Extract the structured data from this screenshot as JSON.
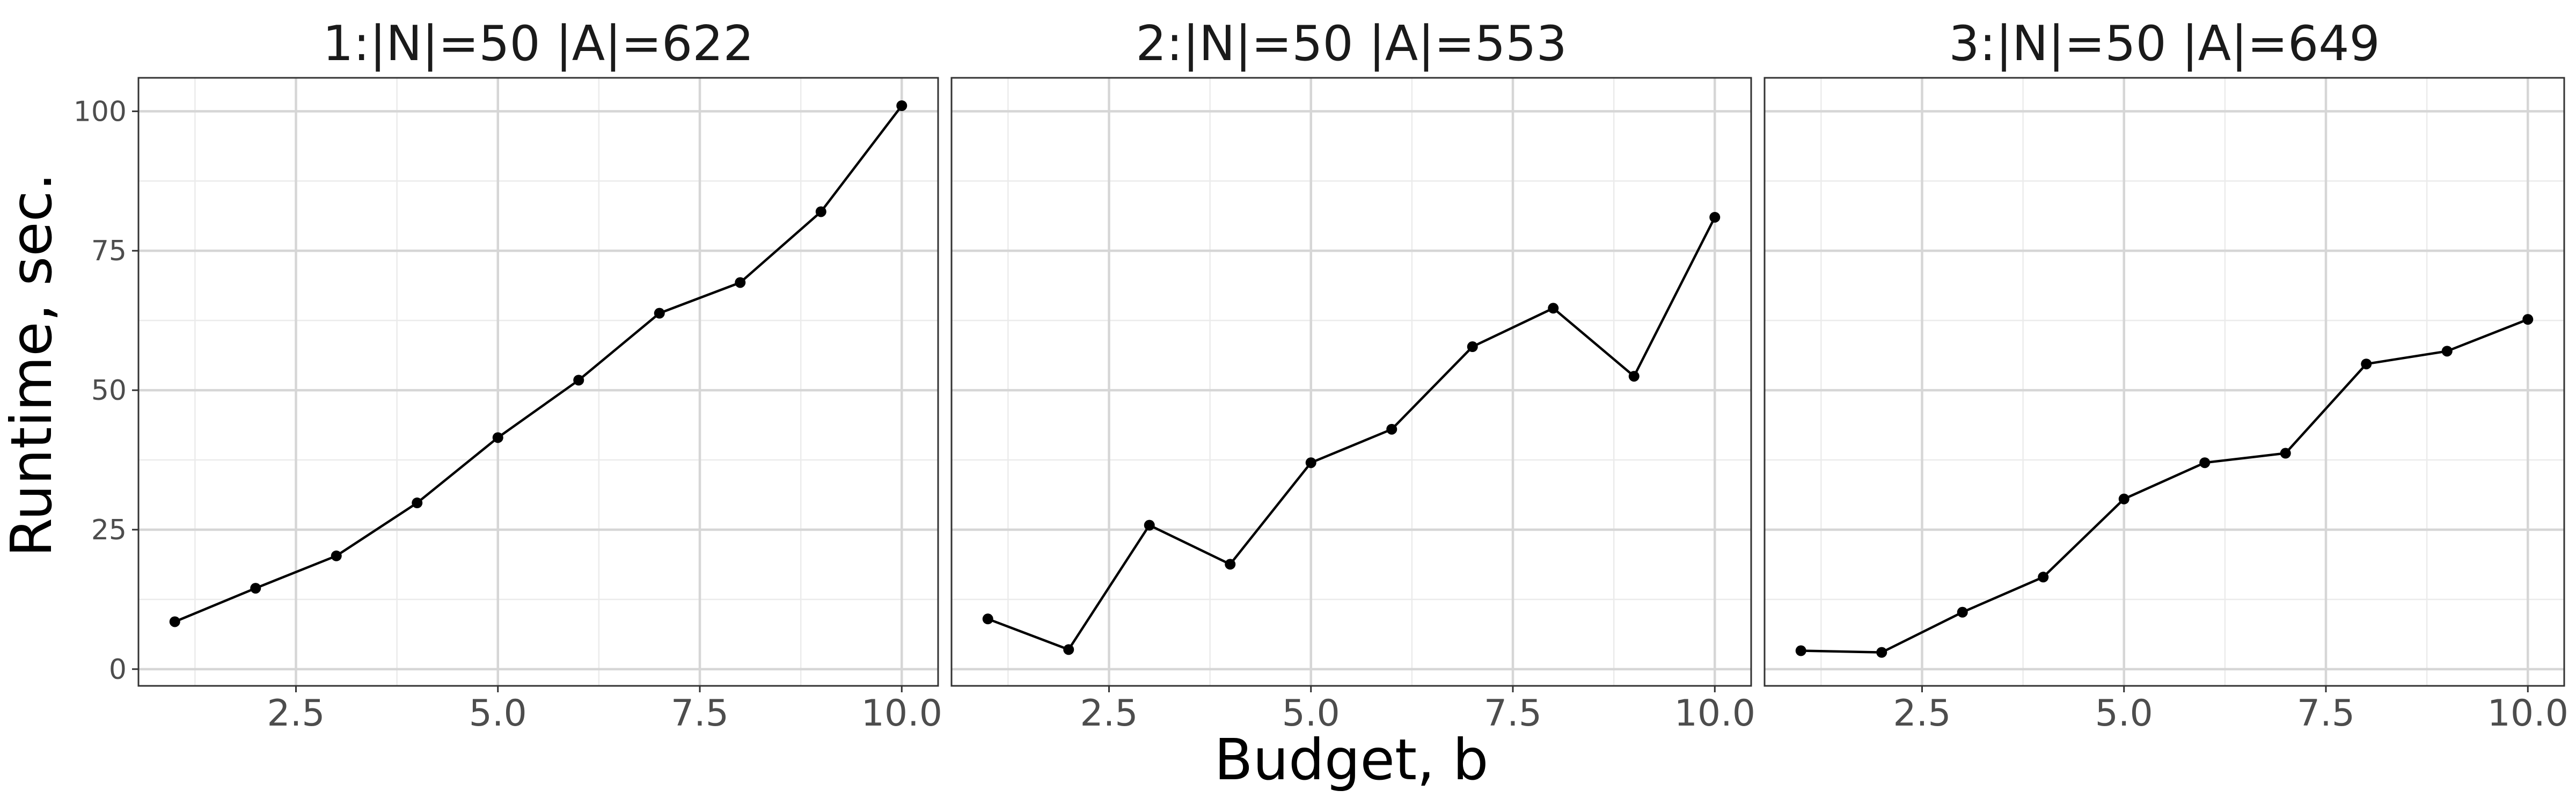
{
  "chart_data": {
    "type": "line",
    "xlabel": "Budget, b",
    "ylabel": "Runtime, sec.",
    "xlim": [
      0.55,
      10.45
    ],
    "ylim": [
      -3,
      106
    ],
    "x_ticks": [
      2.5,
      5.0,
      7.5,
      10.0
    ],
    "x_tick_labels": [
      "2.5",
      "5.0",
      "7.5",
      "10.0"
    ],
    "y_ticks": [
      0,
      25,
      50,
      75,
      100
    ],
    "y_tick_labels": [
      "0",
      "25",
      "50",
      "75",
      "100"
    ],
    "grid": true,
    "facets": [
      {
        "title": "1:|N|=50 |A|=622",
        "x": [
          1,
          2,
          3,
          4,
          5,
          6,
          7,
          8,
          9,
          10
        ],
        "y": [
          8.5,
          14.5,
          20.3,
          29.8,
          41.5,
          51.8,
          63.8,
          69.3,
          82.0,
          101.0
        ]
      },
      {
        "title": "2:|N|=50 |A|=553",
        "x": [
          1,
          2,
          3,
          4,
          5,
          6,
          7,
          8,
          9,
          10
        ],
        "y": [
          9.0,
          3.5,
          25.8,
          18.8,
          37.0,
          43.0,
          57.8,
          64.7,
          52.5,
          81.0
        ]
      },
      {
        "title": "3:|N|=50 |A|=649",
        "x": [
          1,
          2,
          3,
          4,
          5,
          6,
          7,
          8,
          9,
          10
        ],
        "y": [
          3.3,
          3.0,
          10.2,
          16.5,
          30.5,
          37.0,
          38.7,
          54.7,
          57.0,
          62.7
        ]
      }
    ]
  }
}
